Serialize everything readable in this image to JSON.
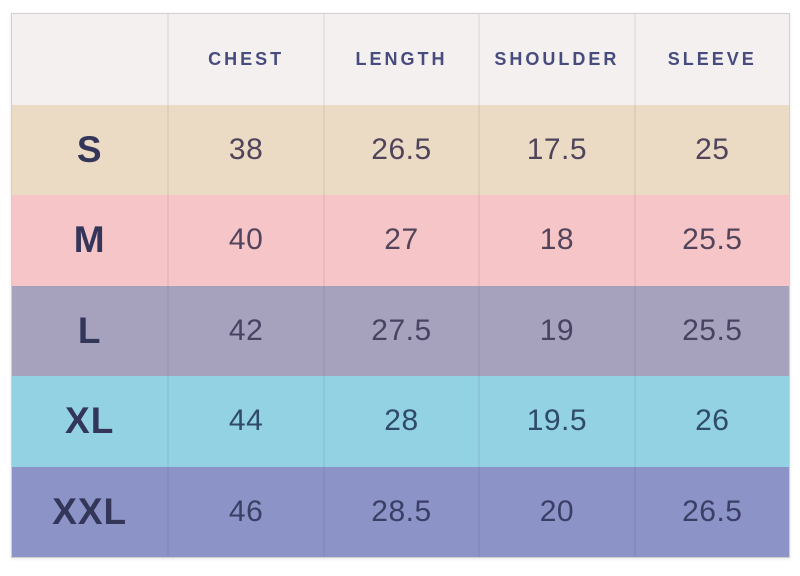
{
  "chart_data": {
    "type": "table",
    "columns": [
      "",
      "CHEST",
      "LENGTH",
      "SHOULDER",
      "SLEEVE"
    ],
    "rows": [
      [
        "S",
        38,
        26.5,
        17.5,
        25
      ],
      [
        "M",
        40,
        27,
        18,
        25.5
      ],
      [
        "L",
        42,
        27.5,
        19,
        25.5
      ],
      [
        "XL",
        44,
        28,
        19.5,
        26
      ],
      [
        "XXL",
        46,
        28.5,
        20,
        26.5
      ]
    ]
  },
  "colors": {
    "page_bg": "#ffffff",
    "header_bg": "#f3f0ef",
    "header_text": "#474b7e",
    "size_label_text": "#333559",
    "table_border": "#d2cfcf",
    "row_bgs": [
      "#ecdbc4",
      "#f5c5c7",
      "#a6a2bd",
      "#92d2e2",
      "#8b93c7"
    ],
    "row_value_text": [
      "#50445c",
      "#53445c",
      "#474363",
      "#2f4a6b",
      "#3b3f66"
    ]
  }
}
